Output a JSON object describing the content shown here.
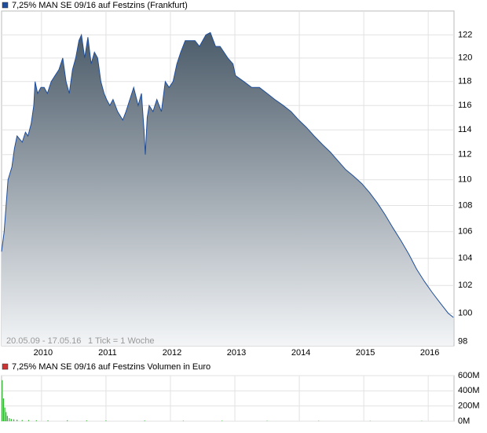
{
  "chart_data": [
    {
      "type": "area",
      "title": "7,25% MAN SE 09/16 auf Festzins (Frankfurt)",
      "annotations": [
        "20.05.09 - 17.05.16",
        "1 Tick = 1 Woche"
      ],
      "log_y": true,
      "grid": true,
      "fill_top": "#4b5b69",
      "fill_bottom": "#f3f5f7",
      "xlim": [
        2009.38,
        2016.4
      ],
      "xticks": [
        2010,
        2011,
        2012,
        2013,
        2014,
        2015,
        2016
      ],
      "ylim": [
        97.7,
        124.1
      ],
      "yticks": [
        98,
        100,
        102,
        104,
        106,
        108,
        110,
        112,
        114,
        116,
        118,
        120,
        122
      ],
      "x": [
        2009.38,
        2009.42,
        2009.48,
        2009.54,
        2009.58,
        2009.62,
        2009.7,
        2009.75,
        2009.79,
        2009.84,
        2009.88,
        2009.9,
        2009.94,
        2009.99,
        2010.04,
        2010.09,
        2010.15,
        2010.21,
        2010.27,
        2010.33,
        2010.38,
        2010.43,
        2010.48,
        2010.53,
        2010.58,
        2010.62,
        2010.67,
        2010.72,
        2010.77,
        2010.82,
        2010.87,
        2010.92,
        2010.97,
        2011.01,
        2011.06,
        2011.11,
        2011.18,
        2011.26,
        2011.31,
        2011.37,
        2011.43,
        2011.5,
        2011.55,
        2011.59,
        2011.61,
        2011.64,
        2011.67,
        2011.73,
        2011.79,
        2011.86,
        2011.92,
        2011.98,
        2012.04,
        2012.1,
        2012.16,
        2012.23,
        2012.31,
        2012.38,
        2012.45,
        2012.5,
        2012.55,
        2012.62,
        2012.7,
        2012.77,
        2012.83,
        2012.89,
        2012.97,
        2013.01,
        2013.14,
        2013.26,
        2013.38,
        2013.5,
        2013.62,
        2013.75,
        2013.87,
        2013.99,
        2014.11,
        2014.23,
        2014.36,
        2014.48,
        2014.6,
        2014.72,
        2014.84,
        2014.97,
        2015.09,
        2015.21,
        2015.33,
        2015.45,
        2015.58,
        2015.7,
        2015.82,
        2015.94,
        2016.06,
        2016.19,
        2016.31,
        2016.39
      ],
      "series": [
        {
          "name": "7,25% MAN SE 09/16 auf Festzins (Frankfurt)",
          "color": "#1f4e9c",
          "values": [
            104.5,
            106,
            110,
            111,
            112.5,
            113.5,
            113,
            113.8,
            113.5,
            114.5,
            116,
            118,
            117,
            117.5,
            117.5,
            117,
            118,
            118.5,
            119,
            120,
            118,
            117,
            119,
            120,
            121.5,
            122,
            120,
            121.8,
            119.5,
            120.5,
            120,
            118,
            117,
            116.5,
            116,
            116.5,
            115.5,
            114.8,
            115.5,
            116.5,
            117.5,
            116,
            117,
            114,
            112,
            115,
            116,
            115.5,
            116.5,
            115.5,
            118,
            117.5,
            118,
            119.5,
            120.5,
            121.5,
            121.5,
            121.5,
            121,
            121.5,
            122,
            122.2,
            121,
            121,
            120.5,
            120,
            119.5,
            118.5,
            118,
            117.5,
            117.5,
            117,
            116.5,
            116,
            115.5,
            114.8,
            114.2,
            113.5,
            112.8,
            112.2,
            111.5,
            110.8,
            110.3,
            109.7,
            109,
            108.2,
            107.3,
            106.3,
            105.3,
            104.3,
            103.2,
            102.3,
            101.5,
            100.7,
            100,
            99.7
          ]
        }
      ]
    },
    {
      "type": "bar",
      "title": "7,25% MAN SE 09/16 auf Festzins Volumen in Euro",
      "legend_color": "#cc3333",
      "grid": true,
      "xlim": [
        2009.38,
        2016.4
      ],
      "xticks": [
        2010,
        2011,
        2012,
        2013,
        2014,
        2015,
        2016
      ],
      "ylim": [
        0,
        600000000
      ],
      "yticks": [
        {
          "value": 0,
          "label": "0M"
        },
        {
          "value": 200000000,
          "label": "200M"
        },
        {
          "value": 400000000,
          "label": "400M"
        },
        {
          "value": 600000000,
          "label": "600M"
        }
      ],
      "x": [
        2009.39,
        2009.41,
        2009.43,
        2009.45,
        2009.47,
        2009.5,
        2009.53,
        2009.57,
        2009.62,
        2009.7,
        2009.8,
        2009.92,
        2010.1,
        2010.4,
        2010.7,
        2011.0,
        2011.6,
        2012.2,
        2012.8,
        2013.5,
        2014.3,
        2015.1,
        2015.9
      ],
      "series": [
        {
          "name": "Volumen",
          "color": "#2db82d",
          "values": [
            540000000,
            300000000,
            180000000,
            120000000,
            70000000,
            40000000,
            30000000,
            25000000,
            20000000,
            15000000,
            15000000,
            12000000,
            10000000,
            12000000,
            10000000,
            8000000,
            8000000,
            6000000,
            6000000,
            5000000,
            5000000,
            4000000,
            4000000
          ]
        }
      ]
    }
  ]
}
